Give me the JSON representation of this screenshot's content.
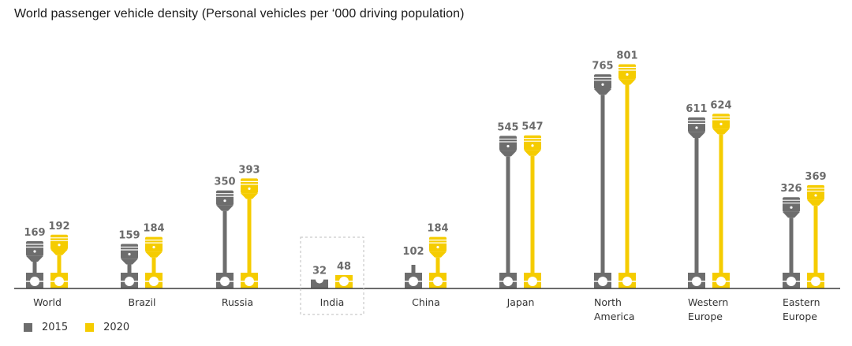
{
  "chart_data": {
    "type": "bar",
    "title": "World passenger vehicle density (Personal vehicles per  ‘000 driving population)",
    "xlabel": "",
    "ylabel": "",
    "ylim": [
      0,
      850
    ],
    "grid": false,
    "legend_position": "bottom-left",
    "categories": [
      "World",
      "Brazil",
      "Russia",
      "India",
      "China",
      "Japan",
      "North America",
      "Western Europe",
      "Eastern Europe"
    ],
    "category_lines": [
      [
        "World"
      ],
      [
        "Brazil"
      ],
      [
        "Russia"
      ],
      [
        "India"
      ],
      [
        "China"
      ],
      [
        "Japan"
      ],
      [
        "North",
        "America"
      ],
      [
        "Western",
        "Europe"
      ],
      [
        "Eastern",
        "Europe"
      ]
    ],
    "highlighted_category": "India",
    "series": [
      {
        "name": "2015",
        "color": "#6d6d6d",
        "values": [
          169,
          159,
          350,
          32,
          102,
          545,
          765,
          611,
          326
        ]
      },
      {
        "name": "2020",
        "color": "#f5cc00",
        "values": [
          192,
          184,
          393,
          48,
          184,
          547,
          801,
          624,
          369
        ]
      }
    ],
    "mark_style": "piston-icon"
  }
}
